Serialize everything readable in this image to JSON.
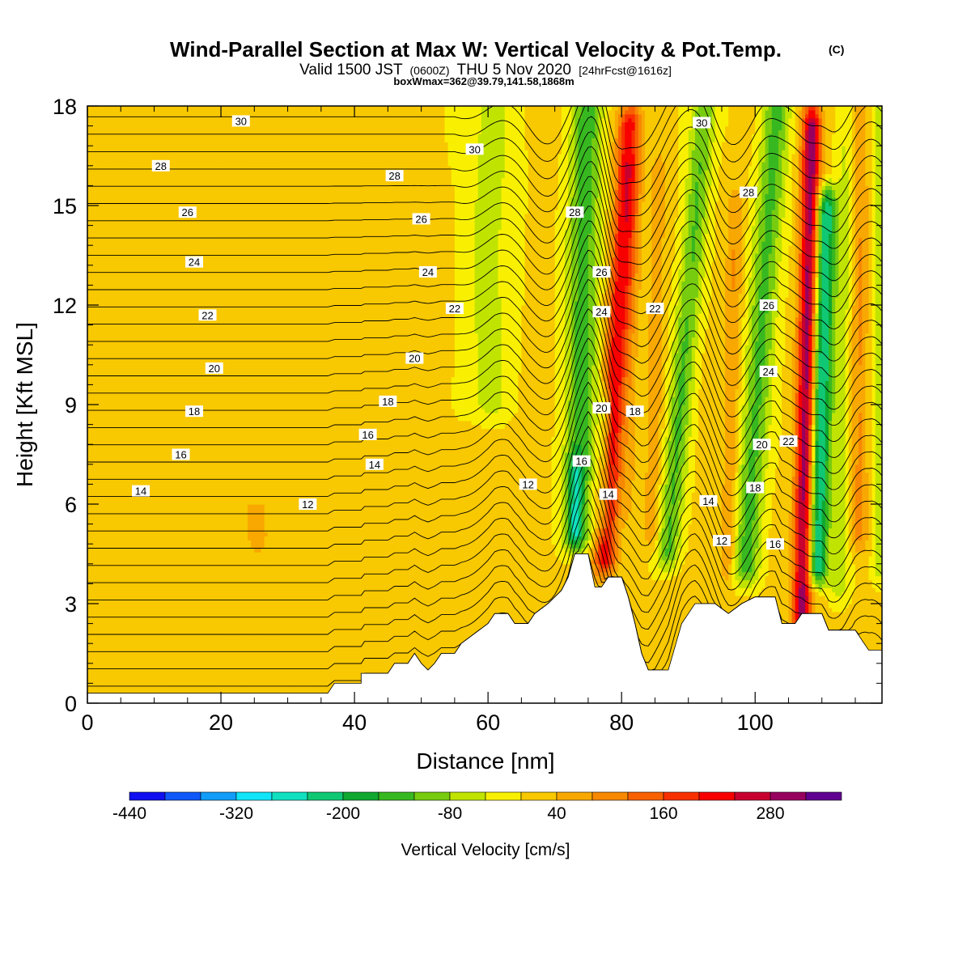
{
  "chart_data": {
    "type": "heatmap",
    "title": "Wind-Parallel Section at Max W: Vertical Velocity & Pot.Temp.",
    "title_mark": "(C)",
    "subtitle_parts": {
      "a": "Valid 1500 JST",
      "b": "(0600Z)",
      "c": "THU 5 Nov 2020",
      "d": "[24hrFcst@1616z]"
    },
    "subtitle2": "boxWmax=362@39.79,141.58,1868m",
    "xlabel": "Distance [nm]",
    "ylabel": "Height [Kft MSL]",
    "xlim": [
      0,
      119
    ],
    "ylim": [
      0,
      18
    ],
    "x_ticks": [
      "0",
      "20",
      "40",
      "60",
      "80",
      "100"
    ],
    "y_ticks": [
      "0",
      "3",
      "6",
      "9",
      "12",
      "15",
      "18"
    ],
    "colorbar": {
      "label": "Vertical Velocity [cm/s]",
      "min": -440,
      "step": 40,
      "tick_labels": [
        "-440",
        "-320",
        "-200",
        "-80",
        "40",
        "160",
        "280"
      ],
      "colors": [
        "#1010f0",
        "#1058f8",
        "#109cf8",
        "#10e4f8",
        "#10e0c0",
        "#10c874",
        "#10a830",
        "#38b820",
        "#78cc10",
        "#c0e400",
        "#f8f000",
        "#f8c800",
        "#f8a800",
        "#f88800",
        "#f86000",
        "#f83000",
        "#f80000",
        "#c80030",
        "#980060",
        "#600090"
      ]
    },
    "terrain": [
      [
        0,
        0.3
      ],
      [
        20,
        0.3
      ],
      [
        36,
        0.3
      ],
      [
        37,
        0.6
      ],
      [
        41,
        0.6
      ],
      [
        41,
        0.9
      ],
      [
        45,
        0.9
      ],
      [
        46,
        1.2
      ],
      [
        48,
        1.2
      ],
      [
        49,
        1.5
      ],
      [
        50,
        1.2
      ],
      [
        51,
        1.0
      ],
      [
        52,
        1.2
      ],
      [
        53,
        1.5
      ],
      [
        55,
        1.5
      ],
      [
        56,
        1.8
      ],
      [
        58,
        2.1
      ],
      [
        60,
        2.4
      ],
      [
        61,
        2.7
      ],
      [
        63,
        2.7
      ],
      [
        64,
        2.4
      ],
      [
        66,
        2.4
      ],
      [
        67,
        2.7
      ],
      [
        69,
        3.0
      ],
      [
        71,
        3.4
      ],
      [
        72,
        3.8
      ],
      [
        73,
        4.5
      ],
      [
        75,
        4.5
      ],
      [
        76,
        3.5
      ],
      [
        77,
        3.5
      ],
      [
        78,
        3.8
      ],
      [
        80,
        3.8
      ],
      [
        81,
        3.2
      ],
      [
        82,
        2.4
      ],
      [
        83,
        1.5
      ],
      [
        84,
        1.0
      ],
      [
        87,
        1.0
      ],
      [
        88,
        1.7
      ],
      [
        89,
        2.4
      ],
      [
        90,
        2.7
      ],
      [
        91,
        3.0
      ],
      [
        94,
        3.0
      ],
      [
        96,
        2.7
      ],
      [
        98,
        3.0
      ],
      [
        100,
        3.2
      ],
      [
        103,
        3.2
      ],
      [
        104,
        2.4
      ],
      [
        106,
        2.4
      ],
      [
        107,
        2.7
      ],
      [
        110,
        2.7
      ],
      [
        111,
        2.2
      ],
      [
        115,
        2.2
      ],
      [
        116,
        1.9
      ],
      [
        117,
        1.6
      ],
      [
        119,
        1.6
      ]
    ],
    "vv_features": [
      {
        "x": 77.5,
        "dx": 0.28,
        "y0": 17.5,
        "y1": 4.3,
        "half_width": 1.7,
        "amplitude": 225
      },
      {
        "x": 77.3,
        "dx": 0.08,
        "y0": 9.0,
        "y1": 5.5,
        "half_width": 1.0,
        "amplitude": -110
      },
      {
        "x": 73.5,
        "dx": 0.1,
        "y0": 18.0,
        "y1": 5.0,
        "half_width": 2.4,
        "amplitude": -150
      },
      {
        "x": 73.0,
        "dx": 0.0,
        "y0": 7.0,
        "y1": 5.2,
        "half_width": 1.1,
        "amplitude": -120
      },
      {
        "x": 60.0,
        "dx": 0.05,
        "y0": 18.0,
        "y1": 9.0,
        "half_width": 4.0,
        "amplitude": -60
      },
      {
        "x": 87.0,
        "dx": 0.4,
        "y0": 18.0,
        "y1": 4.5,
        "half_width": 1.8,
        "amplitude": -130
      },
      {
        "x": 84.5,
        "dx": 0.1,
        "y0": 16.0,
        "y1": 5.0,
        "half_width": 1.2,
        "amplitude": 60
      },
      {
        "x": 81.0,
        "dx": 0.1,
        "y0": 16.0,
        "y1": 6.0,
        "half_width": 1.2,
        "amplitude": 40
      },
      {
        "x": 98.5,
        "dx": 0.34,
        "y0": 18.0,
        "y1": 4.0,
        "half_width": 2.1,
        "amplitude": -140
      },
      {
        "x": 96.0,
        "dx": 0.1,
        "y0": 15.0,
        "y1": 4.0,
        "half_width": 1.2,
        "amplitude": 70
      },
      {
        "x": 107.0,
        "dx": 0.1,
        "y0": 17.5,
        "y1": 2.6,
        "half_width": 1.4,
        "amplitude": 300
      },
      {
        "x": 109.3,
        "dx": 0.12,
        "y0": 15.0,
        "y1": 4.0,
        "half_width": 1.5,
        "amplitude": -260
      },
      {
        "x": 112.5,
        "dx": 0.1,
        "y0": 18.0,
        "y1": 3.5,
        "half_width": 1.5,
        "amplitude": -70
      },
      {
        "x": 115.5,
        "dx": 0.0,
        "y0": 18.0,
        "y1": 5.0,
        "half_width": 1.5,
        "amplitude": 80
      },
      {
        "x": 118.5,
        "dx": 0.0,
        "y0": 18.0,
        "y1": 4.0,
        "half_width": 1.2,
        "amplitude": -60
      },
      {
        "x": 42.0,
        "dx": 0.0,
        "y0": 17.0,
        "y1": 0.3,
        "half_width": 1.5,
        "amplitude": 20
      },
      {
        "x": 25.0,
        "dx": 0.0,
        "y0": 15.0,
        "y1": 5.0,
        "half_width": 2.0,
        "amplitude": 20
      },
      {
        "x": 53.0,
        "dx": 0.0,
        "y0": 12.0,
        "y1": 1.5,
        "half_width": 1.5,
        "amplitude": 25
      },
      {
        "x": 67.0,
        "dx": 0.0,
        "y0": 14.0,
        "y1": 2.8,
        "half_width": 1.5,
        "amplitude": 25
      }
    ],
    "isentrope_labels": [
      {
        "text": "30",
        "x": 23,
        "y": 17.55
      },
      {
        "text": "30",
        "x": 58,
        "y": 16.7
      },
      {
        "text": "30",
        "x": 92,
        "y": 17.5
      },
      {
        "text": "28",
        "x": 11,
        "y": 16.2
      },
      {
        "text": "28",
        "x": 46,
        "y": 15.9
      },
      {
        "text": "28",
        "x": 73,
        "y": 14.8
      },
      {
        "text": "28",
        "x": 99,
        "y": 15.4
      },
      {
        "text": "26",
        "x": 15,
        "y": 14.8
      },
      {
        "text": "26",
        "x": 50,
        "y": 14.6
      },
      {
        "text": "26",
        "x": 77,
        "y": 13.0
      },
      {
        "text": "26",
        "x": 102,
        "y": 12.0
      },
      {
        "text": "24",
        "x": 16,
        "y": 13.3
      },
      {
        "text": "24",
        "x": 51,
        "y": 13.0
      },
      {
        "text": "24",
        "x": 77,
        "y": 11.8
      },
      {
        "text": "24",
        "x": 102,
        "y": 10.0
      },
      {
        "text": "22",
        "x": 18,
        "y": 11.7
      },
      {
        "text": "22",
        "x": 55,
        "y": 11.9
      },
      {
        "text": "22",
        "x": 85,
        "y": 11.9
      },
      {
        "text": "22",
        "x": 105,
        "y": 7.9
      },
      {
        "text": "20",
        "x": 19,
        "y": 10.1
      },
      {
        "text": "20",
        "x": 49,
        "y": 10.4
      },
      {
        "text": "20",
        "x": 77,
        "y": 8.9
      },
      {
        "text": "20",
        "x": 101,
        "y": 7.8
      },
      {
        "text": "18",
        "x": 16,
        "y": 8.8
      },
      {
        "text": "18",
        "x": 45,
        "y": 9.1
      },
      {
        "text": "18",
        "x": 82,
        "y": 8.8
      },
      {
        "text": "18",
        "x": 100,
        "y": 6.5
      },
      {
        "text": "16",
        "x": 14,
        "y": 7.5
      },
      {
        "text": "16",
        "x": 42,
        "y": 8.1
      },
      {
        "text": "16",
        "x": 74,
        "y": 7.3
      },
      {
        "text": "16",
        "x": 103,
        "y": 4.8
      },
      {
        "text": "14",
        "x": 8,
        "y": 6.4
      },
      {
        "text": "14",
        "x": 43,
        "y": 7.2
      },
      {
        "text": "14",
        "x": 78,
        "y": 6.3
      },
      {
        "text": "14",
        "x": 93,
        "y": 6.1
      },
      {
        "text": "12",
        "x": 33,
        "y": 6.0
      },
      {
        "text": "12",
        "x": 66,
        "y": 6.6
      },
      {
        "text": "12",
        "x": 95,
        "y": 4.9
      }
    ]
  }
}
